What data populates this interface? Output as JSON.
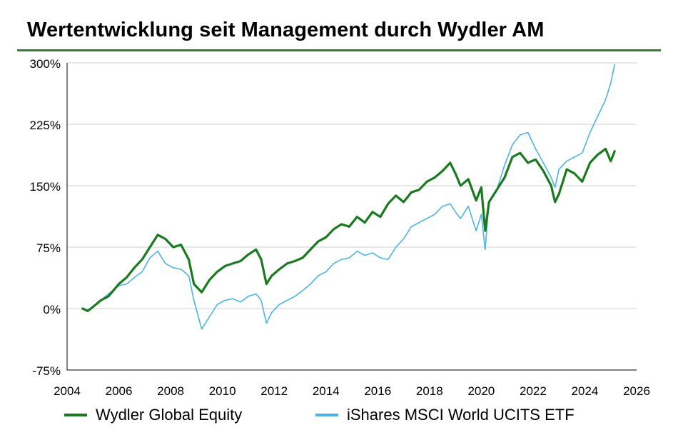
{
  "title": "Wertentwicklung seit Management durch Wydler AM",
  "colors": {
    "accent": "#2e7d32",
    "wydler": "#1a7a1f",
    "ishares": "#4db3e6",
    "grid": "#cccccc"
  },
  "legend": {
    "wydler": "Wydler Global Equity",
    "ishares": "iShares MSCI World UCITS ETF"
  },
  "chart_data": {
    "type": "line",
    "title": "Wertentwicklung seit Management durch Wydler AM",
    "xlabel": "",
    "ylabel": "",
    "xlim": [
      2004,
      2026
    ],
    "ylim": [
      -75,
      300
    ],
    "x_ticks": [
      "2004",
      "2006",
      "2008",
      "2010",
      "2012",
      "2014",
      "2016",
      "2018",
      "2020",
      "2022",
      "2024",
      "2026"
    ],
    "y_ticks": [
      "300%",
      "225%",
      "150%",
      "75%",
      "0%",
      "-75%"
    ],
    "y_tick_values": [
      300,
      225,
      150,
      75,
      0,
      -75
    ],
    "grid": "horizontal",
    "legend_position": "bottom",
    "series": [
      {
        "name": "Wydler Global Equity",
        "color": "#1a7a1f",
        "x": [
          2004.6,
          2004.8,
          2005.0,
          2005.3,
          2005.6,
          2006.0,
          2006.3,
          2006.6,
          2006.9,
          2007.2,
          2007.5,
          2007.8,
          2008.1,
          2008.4,
          2008.7,
          2008.9,
          2009.2,
          2009.5,
          2009.8,
          2010.1,
          2010.4,
          2010.7,
          2011.0,
          2011.3,
          2011.5,
          2011.7,
          2011.9,
          2012.2,
          2012.5,
          2012.8,
          2013.1,
          2013.4,
          2013.7,
          2014.0,
          2014.3,
          2014.6,
          2014.9,
          2015.2,
          2015.5,
          2015.8,
          2016.1,
          2016.4,
          2016.7,
          2017.0,
          2017.3,
          2017.6,
          2017.9,
          2018.2,
          2018.5,
          2018.8,
          2019.0,
          2019.2,
          2019.5,
          2019.8,
          2020.0,
          2020.15,
          2020.3,
          2020.6,
          2020.9,
          2021.2,
          2021.5,
          2021.8,
          2022.1,
          2022.4,
          2022.7,
          2022.85,
          2023.0,
          2023.3,
          2023.6,
          2023.9,
          2024.2,
          2024.5,
          2024.8,
          2025.0,
          2025.15
        ],
        "values": [
          0,
          -3,
          2,
          10,
          15,
          30,
          38,
          50,
          60,
          75,
          90,
          85,
          75,
          78,
          60,
          30,
          20,
          35,
          45,
          52,
          55,
          58,
          66,
          72,
          60,
          30,
          40,
          48,
          55,
          58,
          62,
          72,
          82,
          87,
          97,
          103,
          100,
          112,
          105,
          118,
          112,
          128,
          138,
          130,
          142,
          145,
          155,
          160,
          168,
          178,
          165,
          150,
          158,
          132,
          148,
          95,
          130,
          145,
          160,
          185,
          190,
          178,
          182,
          168,
          150,
          130,
          140,
          170,
          165,
          155,
          178,
          188,
          195,
          180,
          192
        ]
      },
      {
        "name": "iShares MSCI World UCITS ETF",
        "color": "#4db3e6",
        "x": [
          2004.6,
          2004.8,
          2005.0,
          2005.3,
          2005.6,
          2006.0,
          2006.3,
          2006.6,
          2006.9,
          2007.2,
          2007.5,
          2007.8,
          2008.1,
          2008.4,
          2008.7,
          2008.9,
          2009.2,
          2009.5,
          2009.8,
          2010.1,
          2010.4,
          2010.7,
          2011.0,
          2011.3,
          2011.5,
          2011.7,
          2011.9,
          2012.2,
          2012.5,
          2012.8,
          2013.1,
          2013.4,
          2013.7,
          2014.0,
          2014.3,
          2014.6,
          2014.9,
          2015.2,
          2015.5,
          2015.8,
          2016.1,
          2016.4,
          2016.7,
          2017.0,
          2017.3,
          2017.6,
          2017.9,
          2018.2,
          2018.5,
          2018.8,
          2019.0,
          2019.2,
          2019.5,
          2019.8,
          2020.0,
          2020.15,
          2020.3,
          2020.6,
          2020.9,
          2021.2,
          2021.5,
          2021.8,
          2022.1,
          2022.4,
          2022.7,
          2022.85,
          2023.0,
          2023.3,
          2023.6,
          2023.9,
          2024.2,
          2024.5,
          2024.8,
          2025.0,
          2025.15
        ],
        "values": [
          0,
          -2,
          3,
          10,
          18,
          28,
          30,
          38,
          45,
          62,
          70,
          55,
          50,
          48,
          40,
          10,
          -25,
          -10,
          5,
          10,
          12,
          8,
          15,
          18,
          10,
          -18,
          -5,
          5,
          10,
          15,
          22,
          30,
          40,
          45,
          55,
          60,
          62,
          70,
          65,
          68,
          62,
          60,
          75,
          85,
          100,
          105,
          110,
          115,
          125,
          128,
          118,
          110,
          125,
          95,
          115,
          72,
          130,
          145,
          175,
          200,
          212,
          215,
          195,
          178,
          160,
          148,
          170,
          180,
          185,
          190,
          215,
          235,
          255,
          275,
          298
        ]
      }
    ]
  }
}
